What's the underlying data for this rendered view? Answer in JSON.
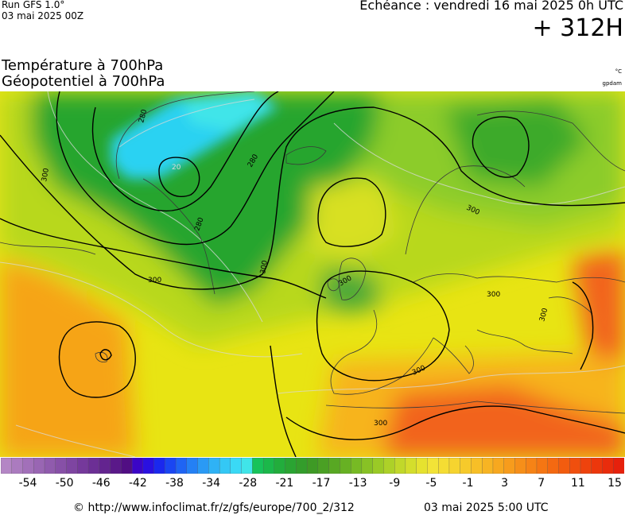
{
  "header": {
    "run_label": "Run GFS 1.0°",
    "run_date": "03 mai 2025 00Z",
    "echeance": "Echéance : vendredi 16 mai 2025 0h UTC",
    "lead_time": "+ 312H"
  },
  "titles": {
    "line1": "Température à 700hPa",
    "line2": "Géopotentiel à 700hPa",
    "unit_temperature": "°C",
    "unit_geopotential": "gpdam"
  },
  "map": {
    "isohypse_labels": [
      "300",
      "300",
      "300",
      "300",
      "300",
      "300",
      "300",
      "300",
      "300",
      "280",
      "280",
      "280"
    ],
    "isotherm_labels": [
      "20"
    ],
    "colors": {
      "cold_cyan": "#29d2f2",
      "green": "#27a52f",
      "light_green": "#8ccc2c",
      "yellow": "#e8e413",
      "orange": "#f6a416",
      "red_orange": "#f2641c",
      "contour": "#000000",
      "coast": "#3a3a3a"
    }
  },
  "scale": {
    "swatch_colors": [
      "#b486c5",
      "#ab7bbf",
      "#a270b9",
      "#9966b3",
      "#905bad",
      "#8750a7",
      "#7e45a1",
      "#75399b",
      "#6c2f95",
      "#63248f",
      "#5a1989",
      "#510e83",
      "#3b05c7",
      "#2a10e0",
      "#1a28ee",
      "#1a46f2",
      "#1f64f4",
      "#2480f5",
      "#2a9af5",
      "#2fb2f5",
      "#34c8f5",
      "#3ad9f5",
      "#40e5e9",
      "#17c35a",
      "#1bb84a",
      "#22ad3c",
      "#2aa432",
      "#339d2b",
      "#3e9a25",
      "#4aa024",
      "#58a823",
      "#67b123",
      "#77ba24",
      "#88c225",
      "#9aca26",
      "#add128",
      "#c1d82a",
      "#d4de2c",
      "#e6e22f",
      "#f2e337",
      "#f5dd33",
      "#f6d42f",
      "#f6ca2b",
      "#f7bf27",
      "#f7b423",
      "#f7a81f",
      "#f79c1c",
      "#f68f19",
      "#f68316",
      "#f57613",
      "#f46911",
      "#f25c0f",
      "#f04f0e",
      "#ee430d",
      "#ec370c",
      "#e92c0c",
      "#e6210c"
    ],
    "labels": [
      "-54",
      "-50",
      "-46",
      "-42",
      "-38",
      "-34",
      "-28",
      "-21",
      "-17",
      "-13",
      "-9",
      "-5",
      "-1",
      "3",
      "7",
      "11",
      "15"
    ]
  },
  "footer": {
    "copyright": "© http://www.infoclimat.fr/z/gfs/europe/700_2/312",
    "generated": "03 mai 2025  5:00 UTC"
  }
}
